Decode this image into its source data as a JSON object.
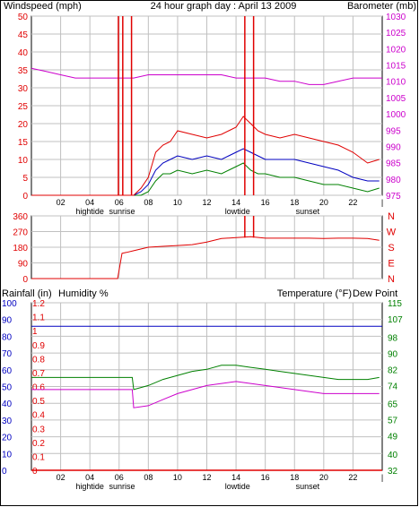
{
  "colors": {
    "frame": "#000000",
    "grid": "#c0c0c0",
    "wind": "#e00000",
    "gust": "#e00000",
    "avg_wind": "#0000c0",
    "green": "#008000",
    "baro": "#cc00cc",
    "humidity": "#0000c0",
    "rain": "#e00000",
    "temp_axis": "#008000",
    "dew_axis": "#cc00cc"
  },
  "header": {
    "windspeed_label": "Windspeed (mph)",
    "title": "24 hour graph day : April 13 2009",
    "barometer_label": "Barometer (mb)"
  },
  "x_ticks": [
    "02",
    "04",
    "06",
    "08",
    "10",
    "12",
    "14",
    "16",
    "18",
    "20",
    "22"
  ],
  "x_annotations": [
    {
      "label": "hightide",
      "hour": 4
    },
    {
      "label": "sunrise",
      "hour": 6.2
    },
    {
      "label": "lowtide",
      "hour": 14.1
    },
    {
      "label": "sunset",
      "hour": 18.9
    }
  ],
  "direction_labels": [
    "N",
    "W",
    "S",
    "E",
    "N"
  ],
  "panel3": {
    "rainfall_label": "Rainfall (in)",
    "humidity_label": "Humidity %",
    "temperature_label": "Temperature (°F)",
    "dewpoint_label": "Dew Point"
  },
  "chart_data": [
    {
      "type": "line",
      "title": "24 hour graph day : April 13 2009",
      "x_unit": "hour of day",
      "xlim": [
        0,
        24
      ],
      "left_axis": {
        "label": "Windspeed (mph)",
        "ylim": [
          0,
          50
        ],
        "ticks": [
          "0",
          "5",
          "10",
          "15",
          "20",
          "25",
          "30",
          "35",
          "40",
          "45",
          "50"
        ]
      },
      "right_axis": {
        "label": "Barometer (mb)",
        "ylim": [
          975,
          1030
        ],
        "ticks": [
          "975",
          "980",
          "985",
          "990",
          "995",
          "1000",
          "1005",
          "1010",
          "1015",
          "1020",
          "1025",
          "1030"
        ]
      },
      "series": [
        {
          "name": "Barometer (mb)",
          "axis": "right",
          "x": [
            0,
            1,
            2,
            3,
            4,
            5,
            6,
            7,
            8,
            9,
            10,
            11,
            12,
            13,
            14,
            15,
            16,
            17,
            18,
            19,
            20,
            21,
            22,
            23,
            24
          ],
          "y": [
            1014,
            1013,
            1012,
            1011,
            1011,
            1011,
            1011,
            1011,
            1012,
            1012,
            1012,
            1012,
            1012,
            1012,
            1011,
            1011,
            1011,
            1010,
            1010,
            1009,
            1009,
            1010,
            1011,
            1011,
            1011
          ]
        },
        {
          "name": "Wind speed",
          "axis": "left",
          "x": [
            0,
            5.9,
            6.2,
            6.5,
            7,
            7.5,
            8,
            8.5,
            9,
            9.5,
            10,
            11,
            12,
            13,
            13.5,
            14,
            14.5,
            15,
            15.5,
            16,
            17,
            18,
            19,
            20,
            21,
            22,
            23,
            23.8
          ],
          "y": [
            0,
            0,
            0,
            0,
            0,
            2,
            5,
            12,
            14,
            15,
            18,
            17,
            16,
            17,
            18,
            19,
            22,
            20,
            18,
            17,
            16,
            17,
            16,
            15,
            14,
            12,
            9,
            10
          ]
        },
        {
          "name": "Average wind",
          "axis": "left",
          "x": [
            0,
            5.9,
            6.2,
            6.5,
            7,
            7.5,
            8,
            8.5,
            9,
            9.5,
            10,
            11,
            12,
            13,
            13.5,
            14,
            14.5,
            15,
            15.5,
            16,
            17,
            18,
            19,
            20,
            21,
            22,
            23,
            23.8
          ],
          "y": [
            0,
            0,
            0,
            0,
            0,
            1,
            3,
            7,
            9,
            10,
            11,
            10,
            11,
            10,
            11,
            12,
            13,
            12,
            11,
            10,
            10,
            10,
            9,
            8,
            7,
            5,
            4,
            4
          ]
        },
        {
          "name": "Gust",
          "axis": "left",
          "x": [
            0,
            5.9,
            6.2,
            6.5,
            7,
            7.5,
            8,
            8.5,
            9,
            9.5,
            10,
            11,
            12,
            13,
            13.5,
            14,
            14.5,
            15,
            15.5,
            16,
            17,
            18,
            19,
            20,
            21,
            22,
            23,
            23.8
          ],
          "y": [
            0,
            0,
            0,
            0,
            0,
            0,
            1,
            4,
            6,
            6,
            7,
            6,
            7,
            6,
            7,
            8,
            9,
            7,
            6,
            6,
            5,
            5,
            4,
            3,
            3,
            2,
            1,
            2
          ]
        }
      ],
      "spikes": [
        {
          "hour": 5.95,
          "value": 50
        },
        {
          "hour": 6.25,
          "value": 50
        },
        {
          "hour": 6.85,
          "value": 50
        },
        {
          "hour": 14.6,
          "value": 50
        },
        {
          "hour": 15.2,
          "value": 50
        }
      ],
      "annotations": [
        "hightide",
        "sunrise",
        "lowtide",
        "sunset"
      ]
    },
    {
      "type": "line",
      "xlim": [
        0,
        24
      ],
      "left_axis": {
        "ylim": [
          0,
          360
        ],
        "ticks": [
          "0",
          "90",
          "180",
          "270",
          "360"
        ]
      },
      "right_axis": {
        "ticks": [
          "N",
          "W",
          "S",
          "E",
          "N"
        ]
      },
      "series": [
        {
          "name": "Wind direction",
          "x": [
            0,
            5.9,
            6.2,
            6.5,
            7,
            8,
            9,
            10,
            11,
            12,
            13,
            14,
            15,
            16,
            17,
            18,
            19,
            20,
            21,
            22,
            23,
            23.8
          ],
          "y": [
            0,
            0,
            145,
            150,
            160,
            180,
            185,
            190,
            195,
            210,
            230,
            235,
            240,
            232,
            232,
            232,
            232,
            230,
            232,
            232,
            230,
            220
          ]
        }
      ]
    },
    {
      "type": "line",
      "xlim": [
        0,
        24
      ],
      "left_axis": {
        "label": "Rainfall (in)",
        "ylim": [
          0,
          1.2
        ],
        "ticks": [
          "0",
          "0.1",
          "0.2",
          "0.3",
          "0.4",
          "0.5",
          "0.6",
          "0.7",
          "0.8",
          "0.9",
          "1",
          "1.1",
          "1.2"
        ]
      },
      "humidity_axis": {
        "label": "Humidity %",
        "ylim": [
          0,
          100
        ],
        "ticks": [
          "0",
          "10",
          "20",
          "30",
          "40",
          "50",
          "60",
          "70",
          "80",
          "90",
          "100"
        ]
      },
      "right_axis": {
        "label": "Temperature (°F)",
        "ylim": [
          32,
          115
        ],
        "ticks": [
          "32",
          "40",
          "49",
          "57",
          "65",
          "74",
          "82",
          "90",
          "98",
          "107",
          "115"
        ]
      },
      "series": [
        {
          "name": "Rainfall (in)",
          "axis": "left",
          "x": [
            0,
            24
          ],
          "y": [
            0,
            0
          ]
        },
        {
          "name": "Humidity %",
          "axis": "humidity",
          "x": [
            0,
            24
          ],
          "y": [
            86,
            86
          ]
        },
        {
          "name": "Temperature (°F)",
          "axis": "right",
          "x": [
            0,
            1,
            2,
            3,
            4,
            5,
            6,
            6.9,
            7,
            8,
            9,
            10,
            11,
            12,
            13,
            14,
            15,
            16,
            17,
            18,
            19,
            20,
            21,
            22,
            23,
            23.8
          ],
          "y": [
            78,
            78,
            78,
            78,
            78,
            78,
            78,
            78,
            72,
            74,
            77,
            79,
            81,
            82,
            84,
            84,
            83,
            82,
            81,
            80,
            79,
            78,
            77,
            77,
            77,
            78
          ]
        },
        {
          "name": "Dew Point",
          "axis": "right",
          "x": [
            0,
            1,
            2,
            3,
            4,
            5,
            6,
            6.9,
            7,
            8,
            9,
            10,
            11,
            12,
            13,
            14,
            15,
            16,
            17,
            18,
            19,
            20,
            21,
            22,
            23,
            23.8
          ],
          "y": [
            72,
            72,
            72,
            72,
            72,
            72,
            72,
            72,
            63,
            64,
            67,
            70,
            72,
            74,
            75,
            76,
            75,
            74,
            73,
            72,
            71,
            70,
            70,
            70,
            70,
            70
          ]
        }
      ]
    }
  ]
}
